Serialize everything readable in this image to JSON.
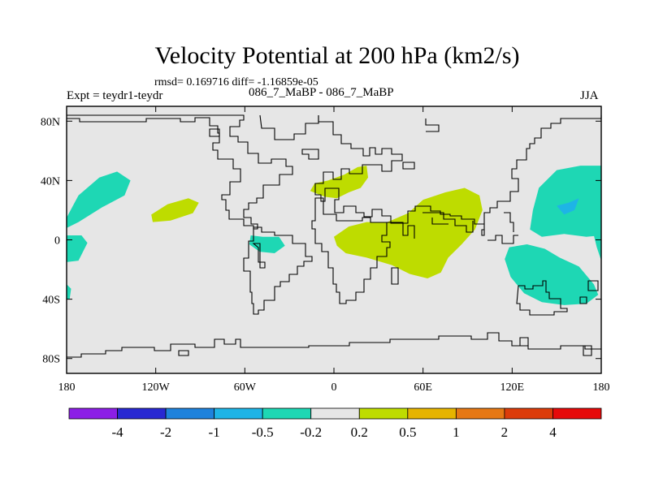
{
  "title": "Velocity Potential at 200 hPa (km2/s)",
  "stats": "rmsd= 0.169716 diff= -1.16859e-05",
  "left_label": "Expt = teydr1-teydr",
  "center_label": "086_7_MaBP - 086_7_MaBP",
  "right_label": "JJA",
  "chart_data": {
    "type": "heatmap",
    "projection": "cylindrical-equidistant",
    "variable": "Velocity Potential at 200 hPa (km2/s)",
    "x_ticks": [
      "180",
      "120W",
      "60W",
      "0",
      "60E",
      "120E",
      "180"
    ],
    "y_ticks": [
      "80N",
      "40N",
      "0",
      "40S",
      "80S"
    ],
    "lon_range": [
      -180,
      180
    ],
    "lat_range": [
      -90,
      90
    ],
    "colorbar": {
      "labels": [
        "-4",
        "-2",
        "-1",
        "-0.5",
        "-0.2",
        "0.2",
        "0.5",
        "1",
        "2",
        "4"
      ],
      "colors": [
        "#8c1ee6",
        "#2828d2",
        "#1e82dc",
        "#1eb4e6",
        "#1ed7b4",
        "#e6e6e6",
        "#bedc00",
        "#e6b400",
        "#e67814",
        "#dc3c0a",
        "#e60a0a"
      ]
    },
    "anomaly_regions": [
      {
        "class": "-0.5 to -0.2",
        "region": "east Pacific near 180, 10N-40N",
        "outline": [
          [
            -180,
            15
          ],
          [
            -172,
            30
          ],
          [
            -158,
            42
          ],
          [
            -146,
            46
          ],
          [
            -137,
            40
          ],
          [
            -141,
            30
          ],
          [
            -156,
            22
          ],
          [
            -172,
            12
          ],
          [
            -180,
            8
          ]
        ]
      },
      {
        "class": "-0.5 to -0.2",
        "region": "east Pacific near 180, 0-15S",
        "outline": [
          [
            -180,
            3
          ],
          [
            -170,
            3
          ],
          [
            -166,
            -2
          ],
          [
            -172,
            -14
          ],
          [
            -180,
            -15
          ]
        ]
      },
      {
        "class": "-0.5 to -0.2",
        "region": "west edge near 180, 30S-40S",
        "outline": [
          [
            -180,
            -30
          ],
          [
            -177,
            -33
          ],
          [
            -178,
            -40
          ],
          [
            -180,
            -40
          ]
        ]
      },
      {
        "class": "-0.5 to -0.2",
        "region": "northern South America",
        "outline": [
          [
            -56,
            3
          ],
          [
            -48,
            2
          ],
          [
            -37,
            2
          ],
          [
            -33,
            -4
          ],
          [
            -40,
            -9
          ],
          [
            -50,
            -8
          ],
          [
            -57,
            -3
          ]
        ]
      },
      {
        "class": "-0.5 to -0.2",
        "region": "west Pacific north of equator",
        "outline": [
          [
            180,
            50
          ],
          [
            166,
            50
          ],
          [
            150,
            47
          ],
          [
            138,
            35
          ],
          [
            134,
            20
          ],
          [
            132,
            7
          ],
          [
            140,
            2
          ],
          [
            155,
            4
          ],
          [
            170,
            2
          ],
          [
            180,
            3
          ]
        ]
      },
      {
        "class": "-1 to -0.5",
        "region": "west Pacific core",
        "outline": [
          [
            150,
            23
          ],
          [
            158,
            25
          ],
          [
            165,
            28
          ],
          [
            162,
            20
          ],
          [
            155,
            17
          ]
        ]
      },
      {
        "class": "-0.5 to -0.2",
        "region": "southwest Pacific / Australia",
        "outline": [
          [
            118,
            -5
          ],
          [
            130,
            -3
          ],
          [
            142,
            -6
          ],
          [
            152,
            -12
          ],
          [
            165,
            -18
          ],
          [
            175,
            -30
          ],
          [
            178,
            -37
          ],
          [
            170,
            -43
          ],
          [
            155,
            -44
          ],
          [
            140,
            -42
          ],
          [
            128,
            -36
          ],
          [
            119,
            -25
          ],
          [
            115,
            -13
          ]
        ]
      },
      {
        "class": "-0.5 to -0.2",
        "region": "east edge near 180, 0-15S",
        "outline": [
          [
            180,
            3
          ],
          [
            175,
            3
          ],
          [
            177,
            -5
          ],
          [
            180,
            -14
          ]
        ]
      },
      {
        "class": "0.2 to 0.5",
        "region": "central Pacific 15N-25N",
        "outline": [
          [
            -123,
            17
          ],
          [
            -112,
            24
          ],
          [
            -98,
            28
          ],
          [
            -91,
            25
          ],
          [
            -95,
            18
          ],
          [
            -110,
            13
          ],
          [
            -122,
            12
          ]
        ]
      },
      {
        "class": "0.2 to 0.5",
        "region": "Mediterranean",
        "outline": [
          [
            -16,
            33
          ],
          [
            -6,
            29
          ],
          [
            2,
            28
          ],
          [
            10,
            32
          ],
          [
            18,
            35
          ],
          [
            23,
            42
          ],
          [
            22,
            50
          ],
          [
            16,
            49
          ],
          [
            7,
            44
          ],
          [
            -4,
            40
          ],
          [
            -13,
            38
          ]
        ]
      },
      {
        "class": "0.2 to 0.5",
        "region": "Africa - Indian Ocean - Asia",
        "outline": [
          [
            0,
            2
          ],
          [
            10,
            9
          ],
          [
            22,
            12
          ],
          [
            36,
            12
          ],
          [
            50,
            18
          ],
          [
            60,
            27
          ],
          [
            75,
            32
          ],
          [
            88,
            35
          ],
          [
            98,
            30
          ],
          [
            100,
            20
          ],
          [
            95,
            7
          ],
          [
            86,
            -3
          ],
          [
            77,
            -12
          ],
          [
            72,
            -22
          ],
          [
            63,
            -26
          ],
          [
            51,
            -23
          ],
          [
            39,
            -17
          ],
          [
            22,
            -12
          ],
          [
            8,
            -9
          ],
          [
            2,
            -4
          ]
        ]
      }
    ]
  }
}
